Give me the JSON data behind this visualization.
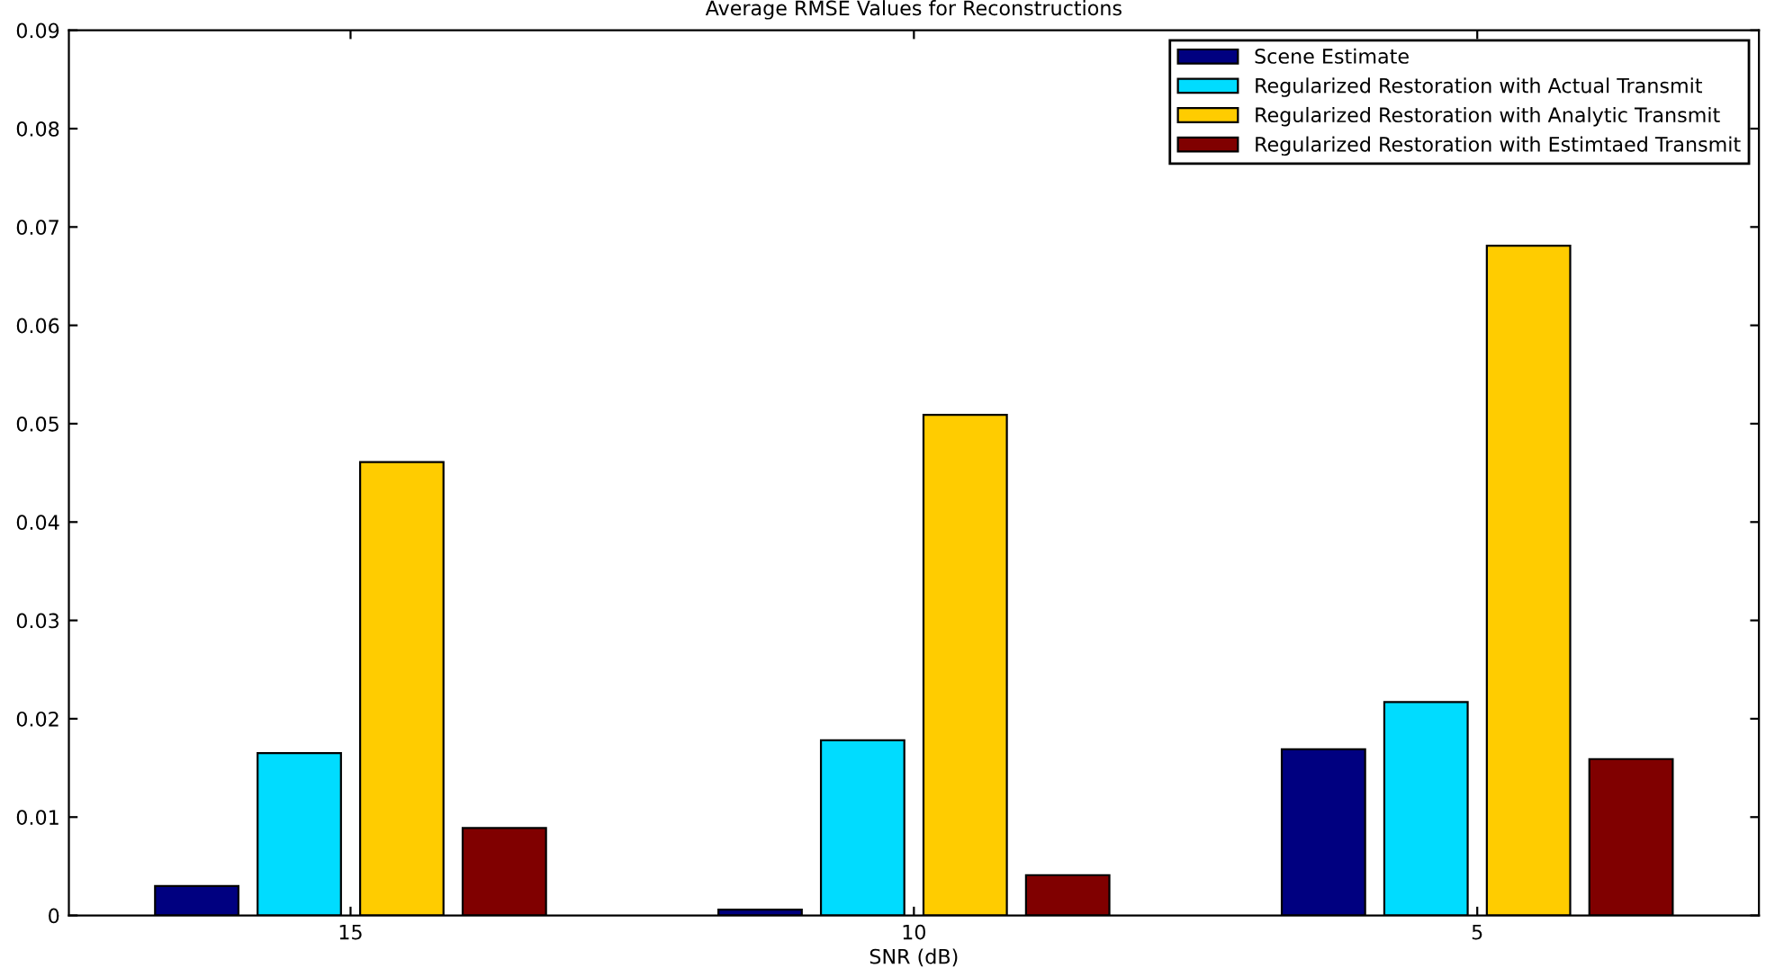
{
  "chart_data": {
    "type": "bar",
    "title": "Average RMSE Values for Reconstructions",
    "xlabel": "SNR (dB)",
    "categories": [
      "15",
      "10",
      "5"
    ],
    "series": [
      {
        "name": "Scene Estimate",
        "color": "#000080",
        "values": [
          0.003,
          0.0006,
          0.0169
        ]
      },
      {
        "name": "Regularized Restoration with Actual Transmit",
        "color": "#00dcff",
        "values": [
          0.0165,
          0.0178,
          0.0217
        ]
      },
      {
        "name": "Regularized Restoration with Analytic Transmit",
        "color": "#ffcc00",
        "values": [
          0.0461,
          0.0509,
          0.0681
        ]
      },
      {
        "name": "Regularized Restoration with Estimtaed Transmit",
        "color": "#800000",
        "values": [
          0.0089,
          0.0041,
          0.0159
        ]
      }
    ],
    "ylim": [
      0,
      0.09
    ],
    "yticks": [
      0,
      0.01,
      0.02,
      0.03,
      0.04,
      0.05,
      0.06,
      0.07,
      0.08,
      0.09
    ],
    "grid": false,
    "legend": "top right"
  }
}
